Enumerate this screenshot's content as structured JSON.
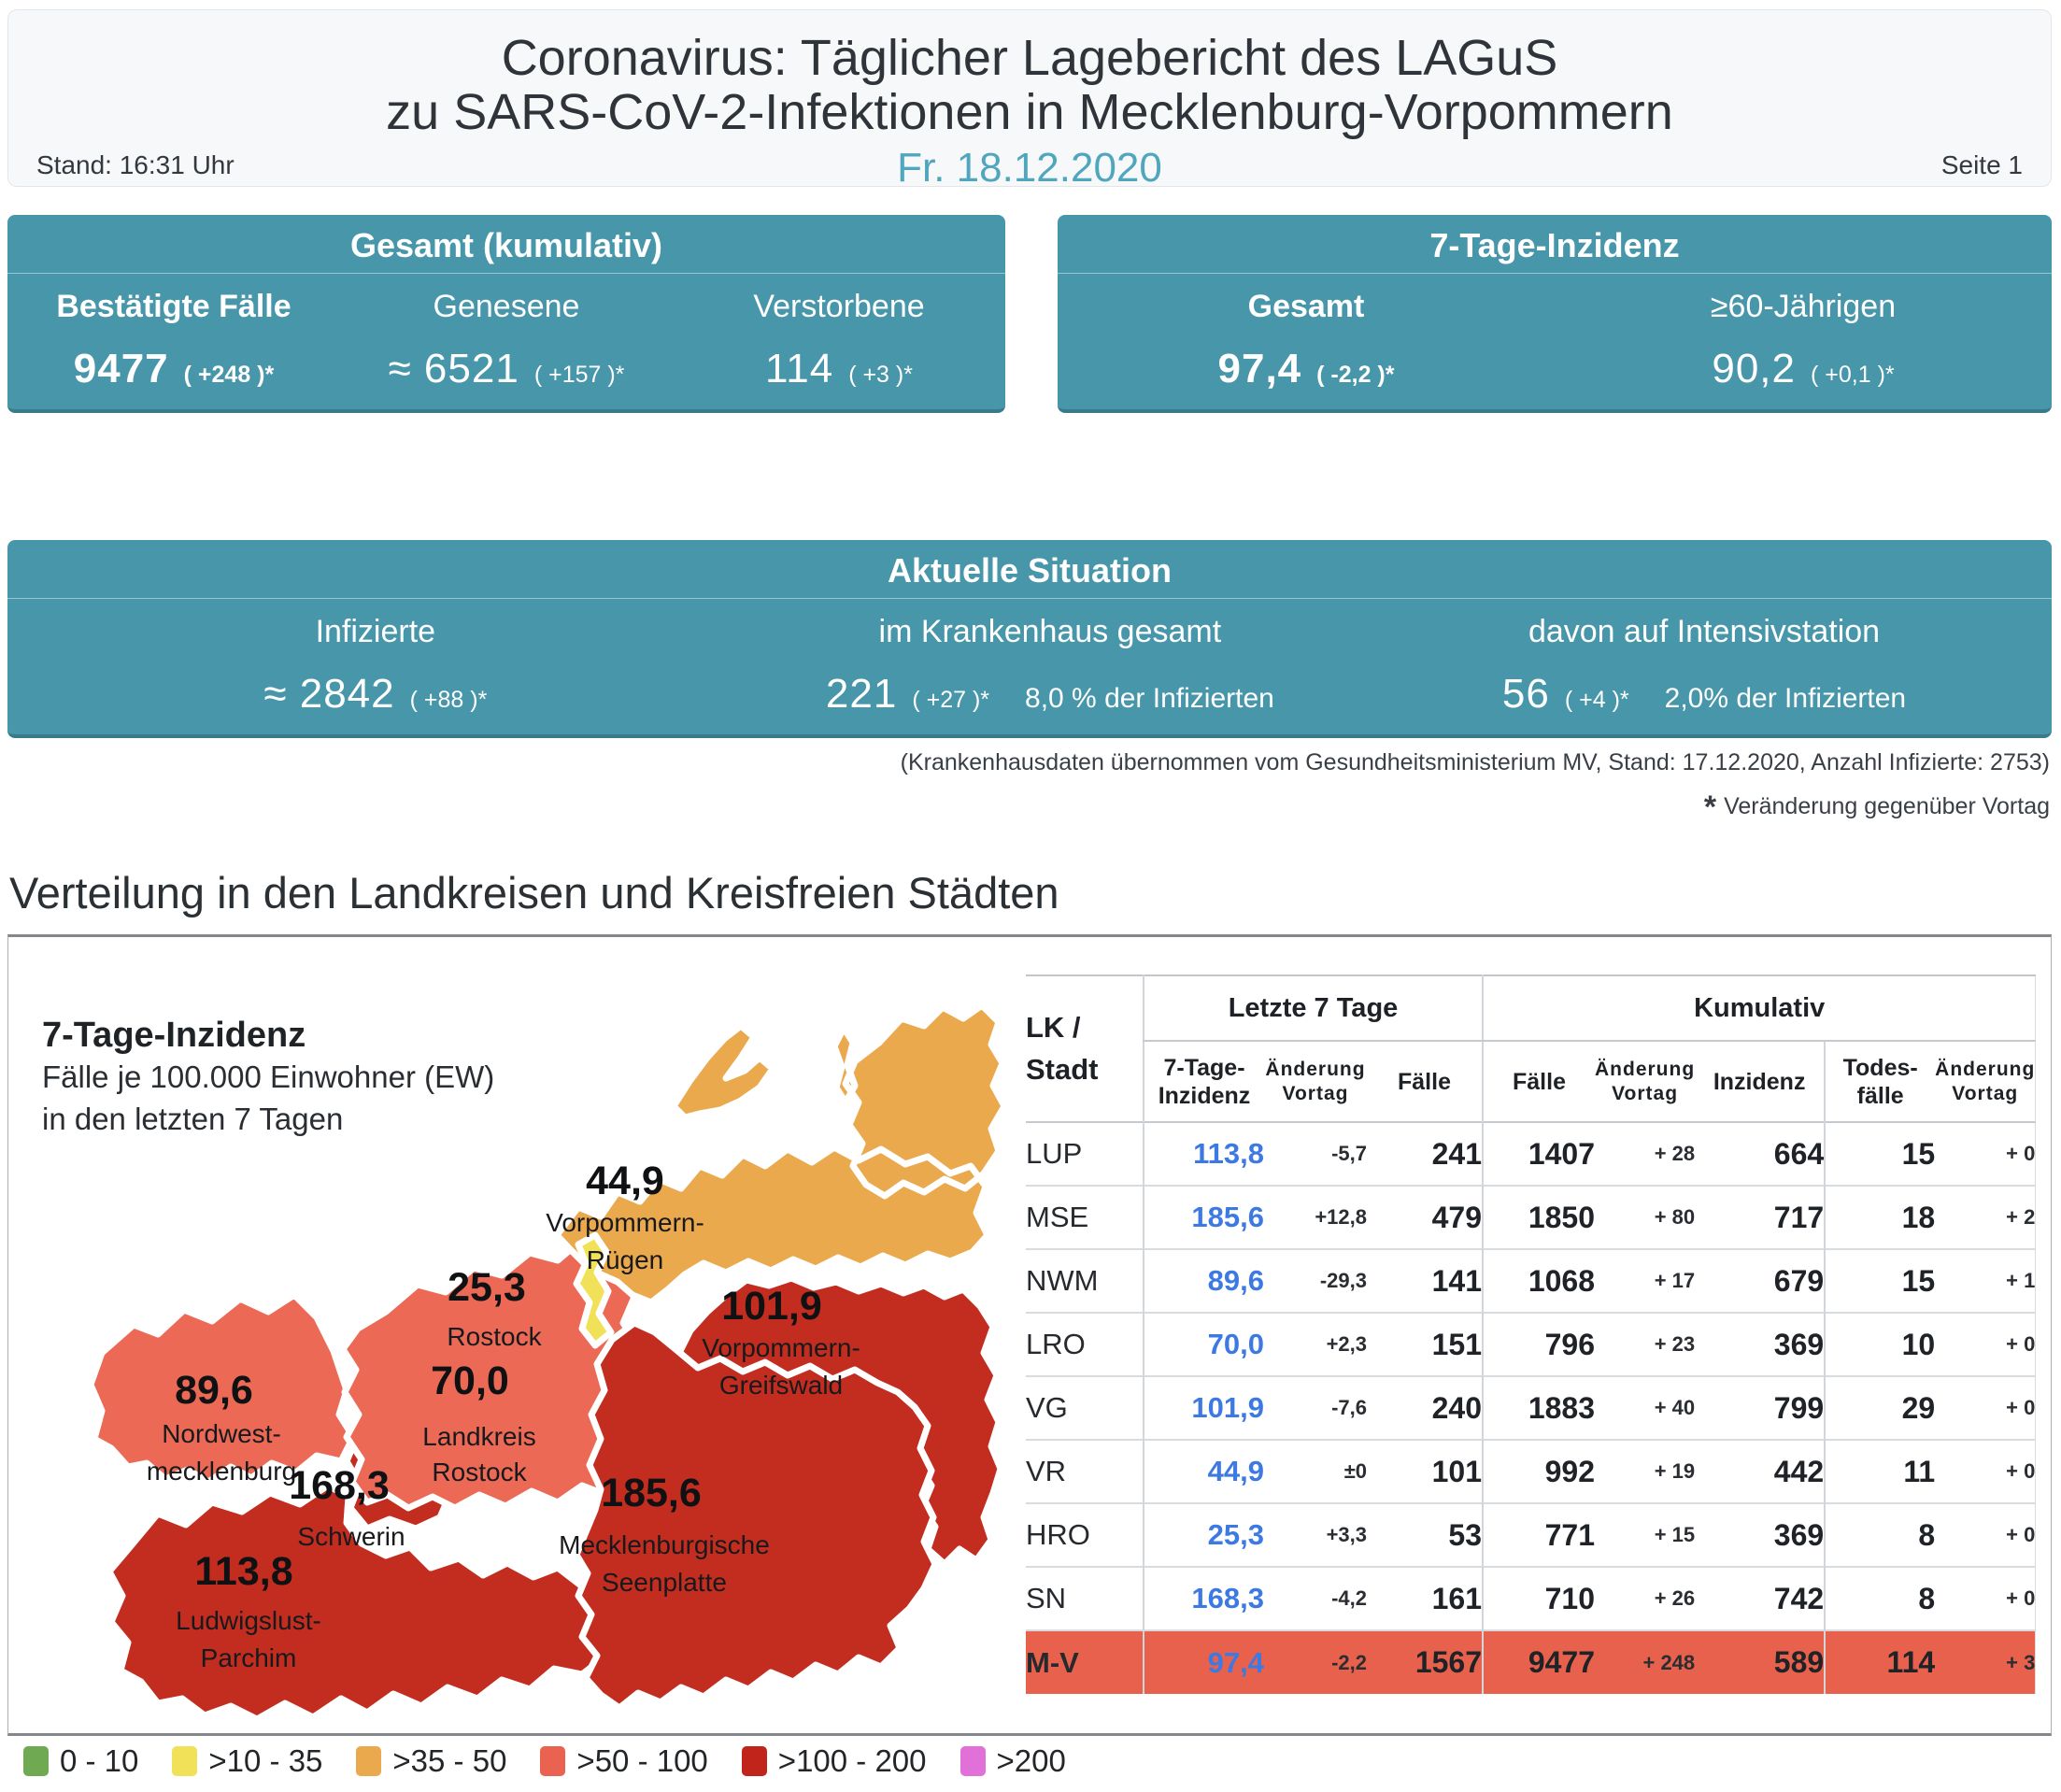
{
  "header": {
    "title_line1": "Coronavirus: Täglicher Lagebericht des LAGuS",
    "title_line2": "zu SARS-CoV-2-Infektionen in Mecklenburg-Vorpommern",
    "stand": "Stand: 16:31 Uhr",
    "date": "Fr. 18.12.2020",
    "page": "Seite 1"
  },
  "cards": {
    "gesamt": {
      "title": "Gesamt (kumulativ)",
      "items": [
        {
          "label": "Bestätigte Fälle",
          "value": "9477",
          "delta": "( +248 )*",
          "emphasis": true
        },
        {
          "label": "Genesene",
          "value": "≈ 6521",
          "delta": "( +157 )*",
          "emphasis": false
        },
        {
          "label": "Verstorbene",
          "value": "114",
          "delta": "( +3 )*",
          "emphasis": false
        }
      ]
    },
    "inzidenz": {
      "title": "7-Tage-Inzidenz",
      "items": [
        {
          "label": "Gesamt",
          "value": "97,4",
          "delta": "( -2,2 )*",
          "emphasis": true
        },
        {
          "label": "≥60-Jährigen",
          "value": "90,2",
          "delta": "( +0,1 )*",
          "emphasis": false
        }
      ]
    },
    "situation": {
      "title": "Aktuelle Situation",
      "items": [
        {
          "label": "Infizierte",
          "value": "≈ 2842",
          "delta": "( +88 )*",
          "share": ""
        },
        {
          "label": "im Krankenhaus gesamt",
          "value": "221",
          "delta": "( +27 )*",
          "share": "8,0 % der Infizierten"
        },
        {
          "label": "davon auf Intensivstation",
          "value": "56",
          "delta": "( +4 )*",
          "share": "2,0% der Infizierten"
        }
      ]
    }
  },
  "footnotes": {
    "hospital": "(Krankenhausdaten übernommen vom Gesundheitsministerium MV, Stand: 17.12.2020, Anzahl Infizierte: 2753)",
    "asterisk": "*",
    "asterisk_text": "Veränderung gegenüber Vortag"
  },
  "section_title": "Verteilung in den Landkreisen und Kreisfreien Städten",
  "map": {
    "title": "7-Tage-Inzidenz",
    "subtitle_line1": "Fälle je 100.000 Einwohner (EW)",
    "subtitle_line2": "in den letzten 7 Tagen",
    "regions": [
      {
        "id": "nordwestmecklenburg",
        "name_lines": [
          "Nordwest-",
          "mecklenburg"
        ],
        "value": "89,6",
        "color": "salmon"
      },
      {
        "id": "ludwigslust-parchim",
        "name_lines": [
          "Ludwigslust-",
          "Parchim"
        ],
        "value": "113,8",
        "color": "red"
      },
      {
        "id": "schwerin",
        "name_lines": [
          "Schwerin"
        ],
        "value": "168,3",
        "color": "red"
      },
      {
        "id": "landkreis-rostock",
        "name_lines": [
          "Landkreis",
          "Rostock"
        ],
        "value": "70,0",
        "color": "salmon"
      },
      {
        "id": "vorpommern-ruegen",
        "name_lines": [
          "Vorpommern-",
          "Rügen"
        ],
        "value": "44,9",
        "color": "orange"
      },
      {
        "id": "vorpommern-greifswald",
        "name_lines": [
          "Vorpommern-",
          "Greifswald"
        ],
        "value": "101,9",
        "color": "red"
      },
      {
        "id": "mecklenburgische-seenplatte",
        "name_lines": [
          "Mecklenburgische",
          "Seenplatte"
        ],
        "value": "185,6",
        "color": "red"
      },
      {
        "id": "rostock-stadt",
        "name_lines": [
          "Rostock"
        ],
        "value": "25,3",
        "color": "yellow"
      }
    ]
  },
  "legend": [
    {
      "label": "0 - 10",
      "color": "#6fa951"
    },
    {
      "label": ">10 - 35",
      "color": "#f0e159"
    },
    {
      "label": ">35 - 50",
      "color": "#eba94e"
    },
    {
      "label": ">50 - 100",
      "color": "#e96350"
    },
    {
      "label": ">100 - 200",
      "color": "#c0241a"
    },
    {
      "label": ">200",
      "color": "#e170d9"
    }
  ],
  "table": {
    "corner_line1": "LK /",
    "corner_line2": "Stadt",
    "group1": "Letzte 7 Tage",
    "group2": "Kumulativ",
    "sub_headers": {
      "inzidenz7_l1": "7-Tage-",
      "inzidenz7_l2": "Inzidenz",
      "aenderung_l1": "Änderung",
      "aenderung_l2": "Vortag",
      "faelle7": "Fälle",
      "kum_faelle": "Fälle",
      "kum_inzidenz": "Inzidenz",
      "todesfaelle_l1": "Todes-",
      "todesfaelle_l2": "fälle"
    },
    "rows": [
      {
        "lk": "LUP",
        "inz7": "113,8",
        "chg7": "-5,7",
        "f7": "241",
        "kf": "1407",
        "kchg": "+ 28",
        "kinz": "664",
        "tod": "15",
        "tchg": "+ 0",
        "highlight": false
      },
      {
        "lk": "MSE",
        "inz7": "185,6",
        "chg7": "+12,8",
        "f7": "479",
        "kf": "1850",
        "kchg": "+ 80",
        "kinz": "717",
        "tod": "18",
        "tchg": "+ 2",
        "highlight": false
      },
      {
        "lk": "NWM",
        "inz7": "89,6",
        "chg7": "-29,3",
        "f7": "141",
        "kf": "1068",
        "kchg": "+ 17",
        "kinz": "679",
        "tod": "15",
        "tchg": "+ 1",
        "highlight": false
      },
      {
        "lk": "LRO",
        "inz7": "70,0",
        "chg7": "+2,3",
        "f7": "151",
        "kf": "796",
        "kchg": "+ 23",
        "kinz": "369",
        "tod": "10",
        "tchg": "+ 0",
        "highlight": false
      },
      {
        "lk": "VG",
        "inz7": "101,9",
        "chg7": "-7,6",
        "f7": "240",
        "kf": "1883",
        "kchg": "+ 40",
        "kinz": "799",
        "tod": "29",
        "tchg": "+ 0",
        "highlight": false
      },
      {
        "lk": "VR",
        "inz7": "44,9",
        "chg7": "±0",
        "f7": "101",
        "kf": "992",
        "kchg": "+ 19",
        "kinz": "442",
        "tod": "11",
        "tchg": "+ 0",
        "highlight": false
      },
      {
        "lk": "HRO",
        "inz7": "25,3",
        "chg7": "+3,3",
        "f7": "53",
        "kf": "771",
        "kchg": "+ 15",
        "kinz": "369",
        "tod": "8",
        "tchg": "+ 0",
        "highlight": false
      },
      {
        "lk": "SN",
        "inz7": "168,3",
        "chg7": "-4,2",
        "f7": "161",
        "kf": "710",
        "kchg": "+ 26",
        "kinz": "742",
        "tod": "8",
        "tchg": "+ 0",
        "highlight": false
      },
      {
        "lk": "M-V",
        "inz7": "97,4",
        "chg7": "-2,2",
        "f7": "1567",
        "kf": "9477",
        "kchg": "+ 248",
        "kinz": "589",
        "tod": "114",
        "tchg": "+ 3",
        "highlight": true
      }
    ]
  },
  "colors": {
    "accent_teal": "#4796aa",
    "date_teal": "#4fa6bd",
    "table_blue": "#3d79e3",
    "mv_row_highlight": "#e8614c",
    "regions": {
      "green": "#6fa951",
      "yellow": "#f0e159",
      "orange": "#eba94e",
      "salmon": "#eb6955",
      "red": "#c22d1f",
      "magenta": "#e170d9"
    }
  }
}
